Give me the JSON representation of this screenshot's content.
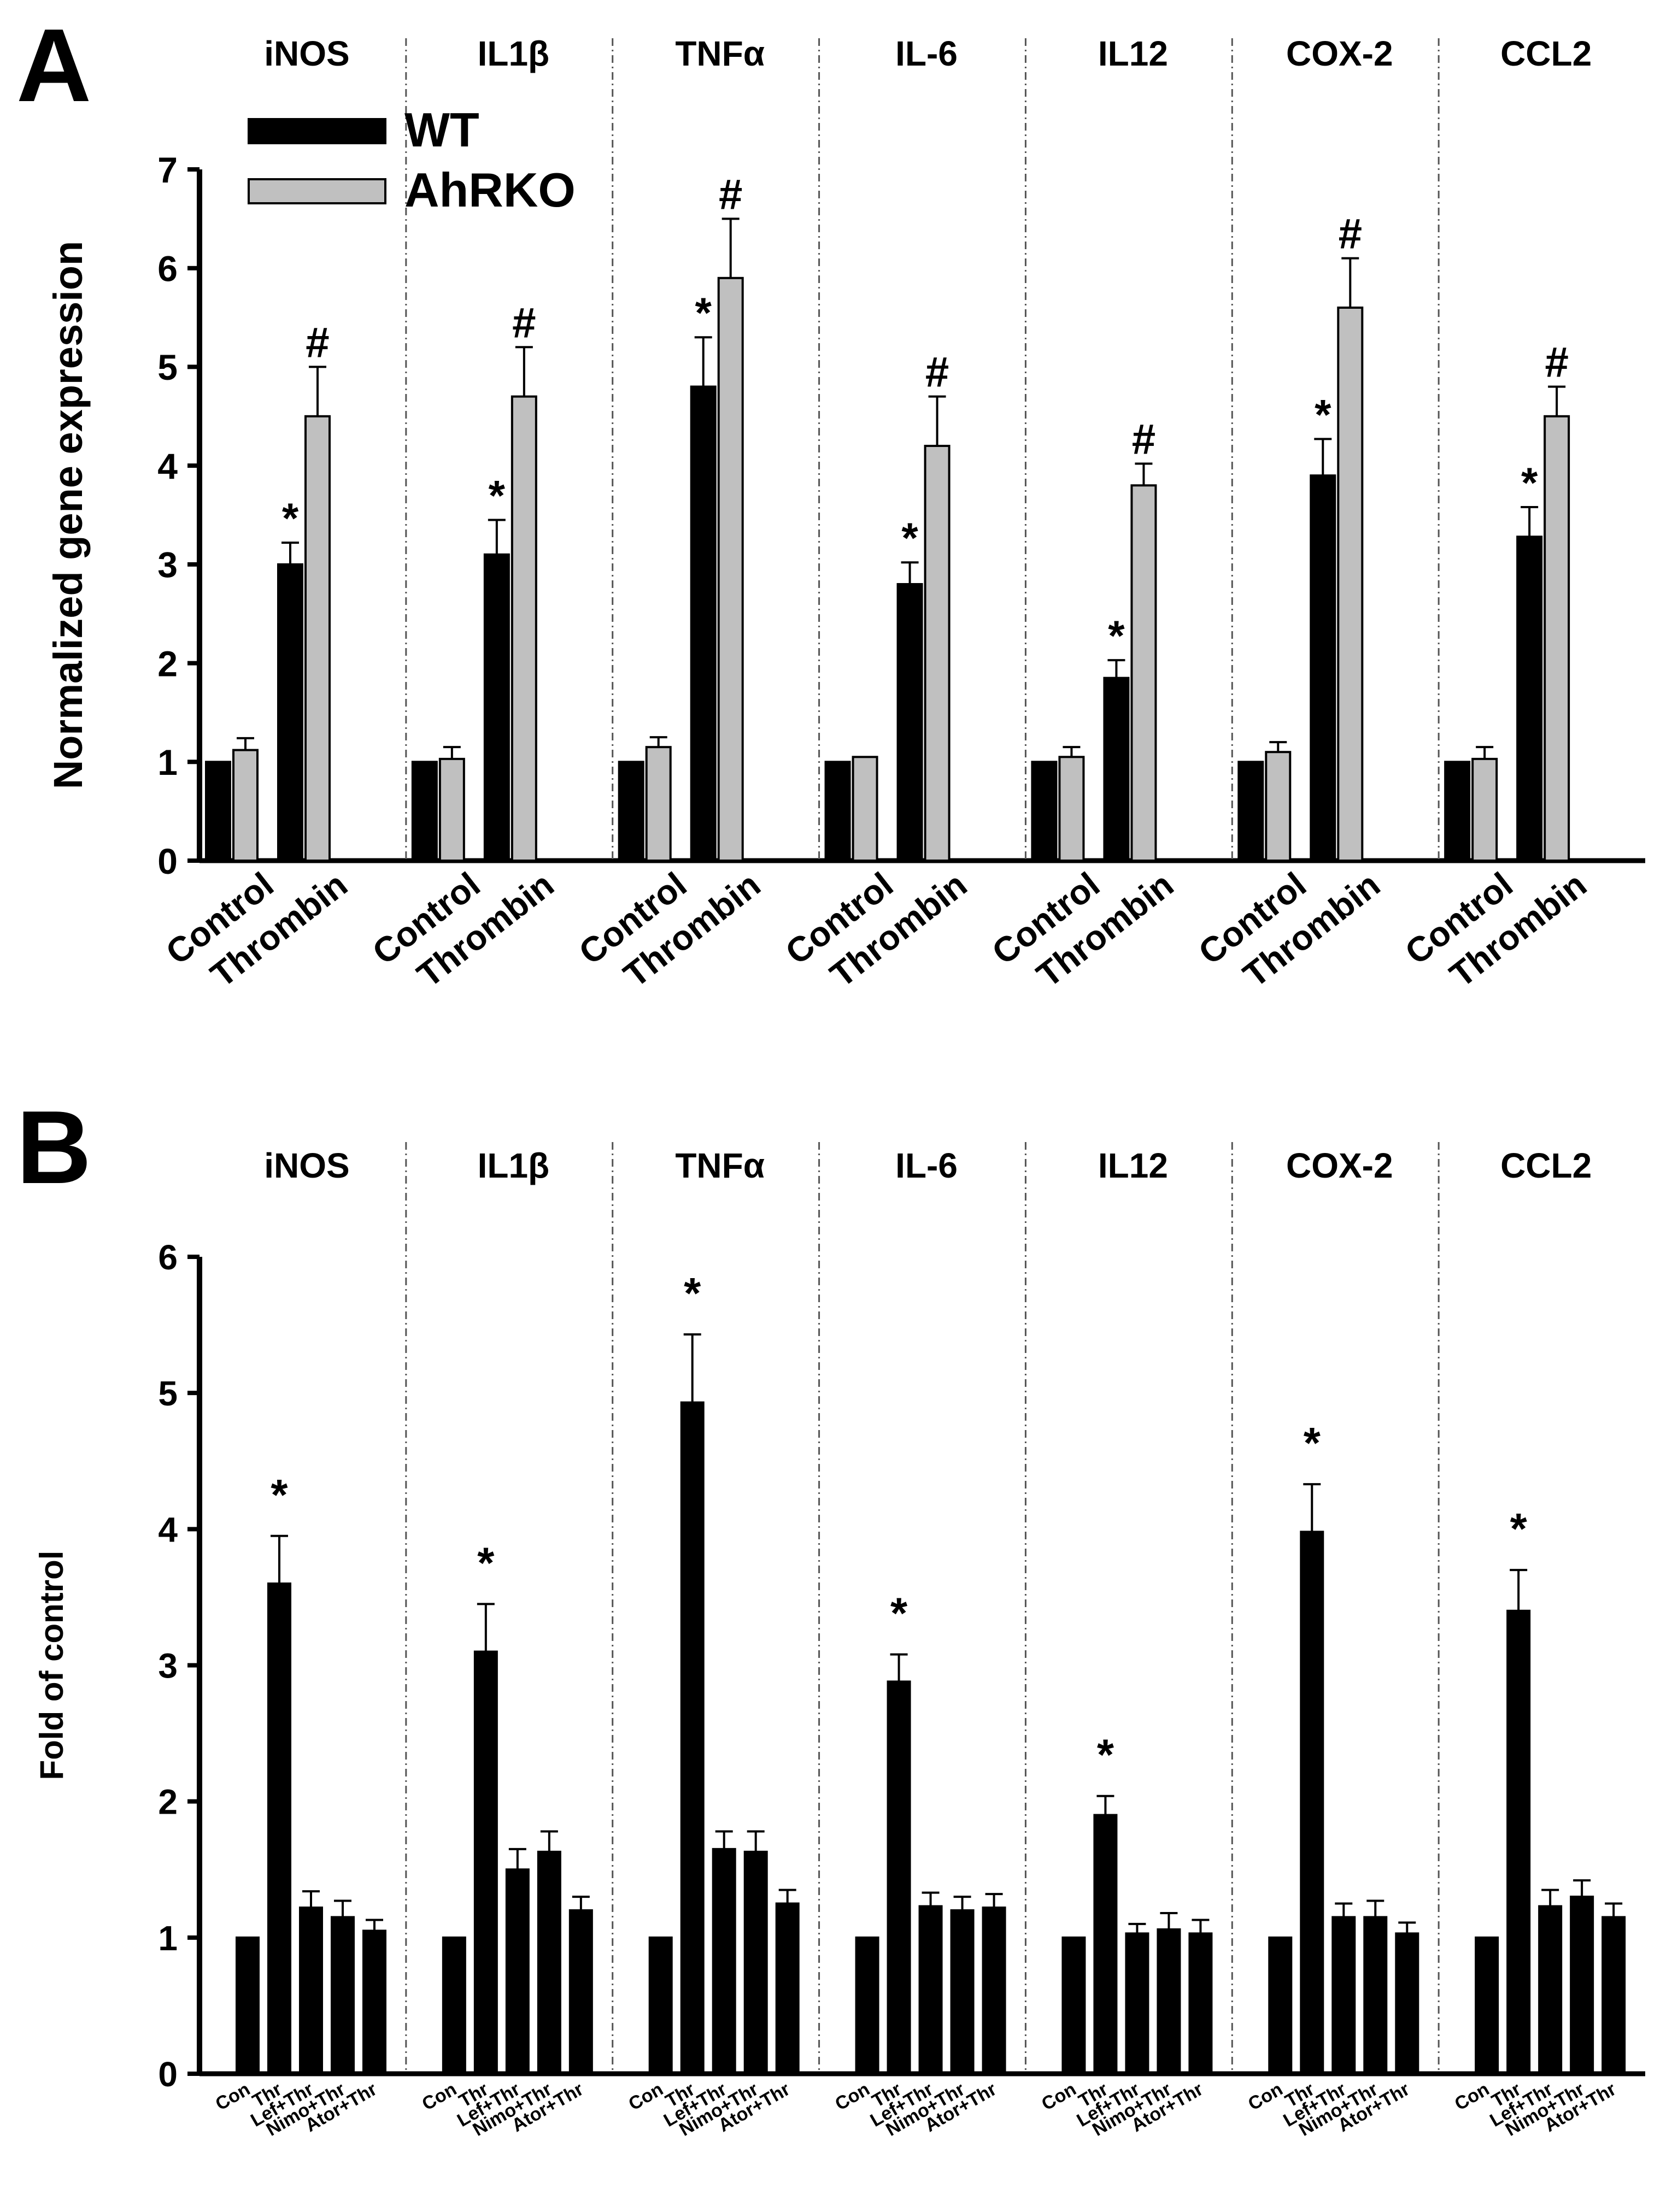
{
  "panels": {
    "a": {
      "label": "A"
    },
    "b": {
      "label": "B"
    }
  },
  "chart_data": [
    {
      "type": "bar",
      "panel": "A",
      "ylabel": "Normalized gene expression",
      "ylim": [
        0,
        7
      ],
      "yticks": [
        0,
        1,
        2,
        3,
        4,
        5,
        6,
        7
      ],
      "groups": [
        "iNOS",
        "IL1β",
        "TNFα",
        "IL-6",
        "IL12",
        "COX-2",
        "CCL2"
      ],
      "categories": [
        "Control",
        "Thrombin"
      ],
      "legend": {
        "placement": "top-left"
      },
      "series": [
        {
          "name": "WT",
          "color": "#000000",
          "values": [
            [
              1.0,
              3.0
            ],
            [
              1.0,
              3.1
            ],
            [
              1.0,
              4.8
            ],
            [
              1.0,
              2.8
            ],
            [
              1.0,
              1.85
            ],
            [
              1.0,
              3.9
            ],
            [
              1.0,
              3.28
            ]
          ],
          "errors": [
            [
              0,
              0.22
            ],
            [
              0,
              0.35
            ],
            [
              0,
              0.5
            ],
            [
              0,
              0.22
            ],
            [
              0,
              0.18
            ],
            [
              0,
              0.37
            ],
            [
              0,
              0.3
            ]
          ],
          "markers": [
            [
              "",
              "*"
            ],
            [
              "",
              "*"
            ],
            [
              "",
              "*"
            ],
            [
              "",
              "*"
            ],
            [
              "",
              "*"
            ],
            [
              "",
              "*"
            ],
            [
              "",
              "*"
            ]
          ]
        },
        {
          "name": "AhRKO",
          "color": "#c0c0c0",
          "values": [
            [
              1.12,
              4.5
            ],
            [
              1.03,
              4.7
            ],
            [
              1.15,
              5.9
            ],
            [
              1.05,
              4.2
            ],
            [
              1.05,
              3.8
            ],
            [
              1.1,
              5.6
            ],
            [
              1.03,
              4.5
            ]
          ],
          "errors": [
            [
              0.12,
              0.5
            ],
            [
              0.12,
              0.5
            ],
            [
              0.1,
              0.6
            ],
            [
              0,
              0.5
            ],
            [
              0.1,
              0.22
            ],
            [
              0.1,
              0.5
            ],
            [
              0.12,
              0.3
            ]
          ],
          "markers": [
            [
              "",
              "#"
            ],
            [
              "",
              "#"
            ],
            [
              "",
              "#"
            ],
            [
              "",
              "#"
            ],
            [
              "",
              "#"
            ],
            [
              "",
              "#"
            ],
            [
              "",
              "#"
            ]
          ]
        }
      ]
    },
    {
      "type": "bar",
      "panel": "B",
      "ylabel": "Fold of control",
      "ylim": [
        0,
        6
      ],
      "yticks": [
        0,
        1,
        2,
        3,
        4,
        5,
        6
      ],
      "groups": [
        "iNOS",
        "IL1β",
        "TNFα",
        "IL-6",
        "IL12",
        "COX-2",
        "CCL2"
      ],
      "categories": [
        "Con",
        "Thr",
        "Lef+Thr",
        "Nimo+Thr",
        "Ator+Thr"
      ],
      "series": [
        {
          "color": "#000000",
          "values": [
            [
              1.0,
              3.6,
              1.22,
              1.15,
              1.05
            ],
            [
              1.0,
              3.1,
              1.5,
              1.63,
              1.2
            ],
            [
              1.0,
              4.93,
              1.65,
              1.63,
              1.25
            ],
            [
              1.0,
              2.88,
              1.23,
              1.2,
              1.22
            ],
            [
              1.0,
              1.9,
              1.03,
              1.06,
              1.03
            ],
            [
              1.0,
              3.98,
              1.15,
              1.15,
              1.03
            ],
            [
              1.0,
              3.4,
              1.23,
              1.3,
              1.15
            ]
          ],
          "errors": [
            [
              0,
              0.35,
              0.12,
              0.12,
              0.08
            ],
            [
              0,
              0.35,
              0.15,
              0.15,
              0.1
            ],
            [
              0,
              0.5,
              0.13,
              0.15,
              0.1
            ],
            [
              0,
              0.2,
              0.1,
              0.1,
              0.1
            ],
            [
              0,
              0.14,
              0.07,
              0.12,
              0.1
            ],
            [
              0,
              0.35,
              0.1,
              0.12,
              0.08
            ],
            [
              0,
              0.3,
              0.12,
              0.12,
              0.1
            ]
          ],
          "markers": [
            [
              "",
              "*",
              "",
              "",
              ""
            ],
            [
              "",
              "*",
              "",
              "",
              ""
            ],
            [
              "",
              "*",
              "",
              "",
              ""
            ],
            [
              "",
              "*",
              "",
              "",
              ""
            ],
            [
              "",
              "*",
              "",
              "",
              ""
            ],
            [
              "",
              "*",
              "",
              "",
              ""
            ],
            [
              "",
              "*",
              "",
              "",
              ""
            ]
          ]
        }
      ]
    }
  ]
}
